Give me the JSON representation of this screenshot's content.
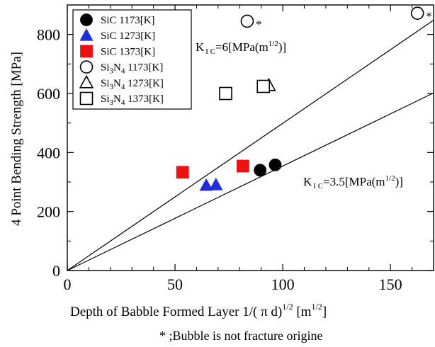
{
  "chart_data": {
    "type": "scatter",
    "xlabel": "Depth of Babble Formed Layer 1/( π d)^1/2 [m^1/2]",
    "ylabel": "4 Point Bending Strength [MPa]",
    "xlim": [
      0,
      170
    ],
    "ylim": [
      0,
      900
    ],
    "x_ticks": [
      0,
      50,
      100,
      150
    ],
    "y_ticks": [
      0,
      200,
      400,
      600,
      800
    ],
    "series": [
      {
        "name": "SiC 1173[K]",
        "marker": "circle-filled",
        "color": "#000000",
        "points": [
          {
            "x": 89.5,
            "y": 340
          },
          {
            "x": 96.5,
            "y": 358
          }
        ]
      },
      {
        "name": "SiC 1273[K]",
        "marker": "triangle-filled",
        "color": "#1f2fe0",
        "points": [
          {
            "x": 64.5,
            "y": 288
          },
          {
            "x": 69,
            "y": 290
          }
        ]
      },
      {
        "name": "SiC 1373[K]",
        "marker": "square-filled",
        "color": "#ee1111",
        "points": [
          {
            "x": 53.5,
            "y": 333
          },
          {
            "x": 81.5,
            "y": 354
          }
        ]
      },
      {
        "name": "Si3N4 1173[K]",
        "marker": "circle-open",
        "color": "#000000",
        "points": [
          {
            "x": 83.5,
            "y": 845,
            "star": true
          },
          {
            "x": 162.5,
            "y": 872,
            "star": true
          }
        ]
      },
      {
        "name": "Si3N4 1273[K]",
        "marker": "triangle-open",
        "color": "#000000",
        "points": [
          {
            "x": 93.5,
            "y": 627
          }
        ]
      },
      {
        "name": "Si3N4 1373[K]",
        "marker": "square-open",
        "color": "#000000",
        "points": [
          {
            "x": 73.5,
            "y": 600
          },
          {
            "x": 91,
            "y": 624
          }
        ]
      }
    ],
    "lines": [
      {
        "label": "K_IC=6[MPa(m^1/2)]",
        "slope": 4.99
      },
      {
        "label": "K_IC=3.5[MPa(m^1/2)]",
        "slope": 3.54
      }
    ],
    "star_symbol": "*",
    "footnote": "* ;Bubble is not fracture origine",
    "legend_position": "top-left"
  }
}
